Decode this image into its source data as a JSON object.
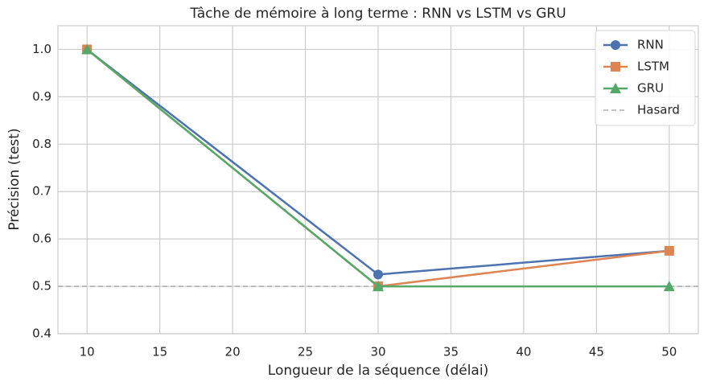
{
  "chart_data": {
    "type": "line",
    "title": "Tâche de mémoire à long terme : RNN vs LSTM vs GRU",
    "xlabel": "Longueur de la séquence (délai)",
    "ylabel": "Précision (test)",
    "x": [
      10,
      30,
      50
    ],
    "series": [
      {
        "name": "RNN",
        "color": "#4c72b0",
        "marker": "circle",
        "values": [
          1.0,
          0.525,
          0.575
        ]
      },
      {
        "name": "LSTM",
        "color": "#dd8452",
        "marker": "square",
        "values": [
          1.0,
          0.5,
          0.575
        ]
      },
      {
        "name": "GRU",
        "color": "#55a868",
        "marker": "triangle",
        "values": [
          1.0,
          0.5,
          0.5
        ]
      }
    ],
    "hline": {
      "name": "Hasard",
      "value": 0.5,
      "color": "#b0b0b0"
    },
    "xlim": [
      8,
      52
    ],
    "ylim": [
      0.4,
      1.05
    ],
    "xticks": [
      10,
      15,
      20,
      25,
      30,
      35,
      40,
      45,
      50
    ],
    "yticks": [
      0.4,
      0.5,
      0.6,
      0.7,
      0.8,
      0.9,
      {
        "value": 1,
        "label": "1.0"
      }
    ],
    "grid": true,
    "legend": "upper right"
  }
}
